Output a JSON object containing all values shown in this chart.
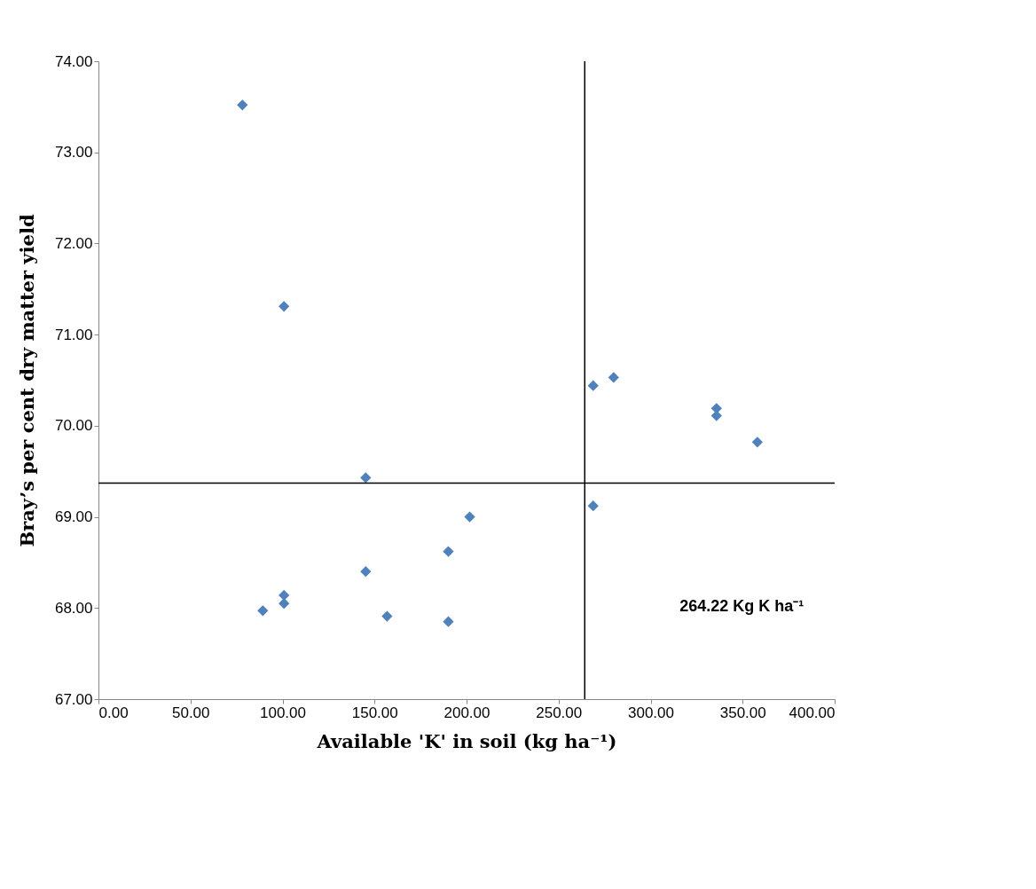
{
  "chart_data": {
    "type": "scatter",
    "xlabel": "Available 'K' in soil (kg ha⁻¹)",
    "ylabel": "Bray’s  per cent dry matter yield",
    "x": [
      78.2,
      100.8,
      145.2,
      201.7,
      190.1,
      145.2,
      100.8,
      100.8,
      89.3,
      156.8,
      190.1,
      268.8,
      279.9,
      335.8,
      335.8,
      358.0,
      268.8
    ],
    "series": [
      {
        "color": "#4f81bd",
        "values": [
          73.52,
          71.31,
          69.43,
          69.0,
          68.62,
          68.4,
          68.14,
          68.05,
          67.97,
          67.91,
          67.85,
          70.44,
          70.53,
          70.19,
          70.11,
          69.82,
          69.12
        ]
      }
    ],
    "marker": "diamond",
    "grid": false,
    "xlim": [
      0,
      400
    ],
    "ylim": [
      67,
      74
    ],
    "xticks": [
      {
        "value": 0,
        "label": "0.00"
      },
      {
        "value": 50,
        "label": "50.00"
      },
      {
        "value": 100,
        "label": "100.00"
      },
      {
        "value": 150,
        "label": "150.00"
      },
      {
        "value": 200,
        "label": "200.00"
      },
      {
        "value": 250,
        "label": "250.00"
      },
      {
        "value": 300,
        "label": "300.00"
      },
      {
        "value": 350,
        "label": "350.00"
      },
      {
        "value": 400,
        "label": "400.00"
      }
    ],
    "yticks": [
      {
        "value": 67,
        "label": "67.00"
      },
      {
        "value": 68,
        "label": "68.00"
      },
      {
        "value": 69,
        "label": "69.00"
      },
      {
        "value": 70,
        "label": "70.00"
      },
      {
        "value": 71,
        "label": "71.00"
      },
      {
        "value": 72,
        "label": "72.00"
      },
      {
        "value": 73,
        "label": "73.00"
      },
      {
        "value": 74,
        "label": "74.00"
      }
    ],
    "ref_lines": [
      {
        "axis": "x",
        "value": 264.22,
        "color": "#000000"
      },
      {
        "axis": "y",
        "value": 69.37,
        "color": "#000000"
      }
    ],
    "annotations": [
      "264.22 Kg K ha⁻¹"
    ]
  }
}
